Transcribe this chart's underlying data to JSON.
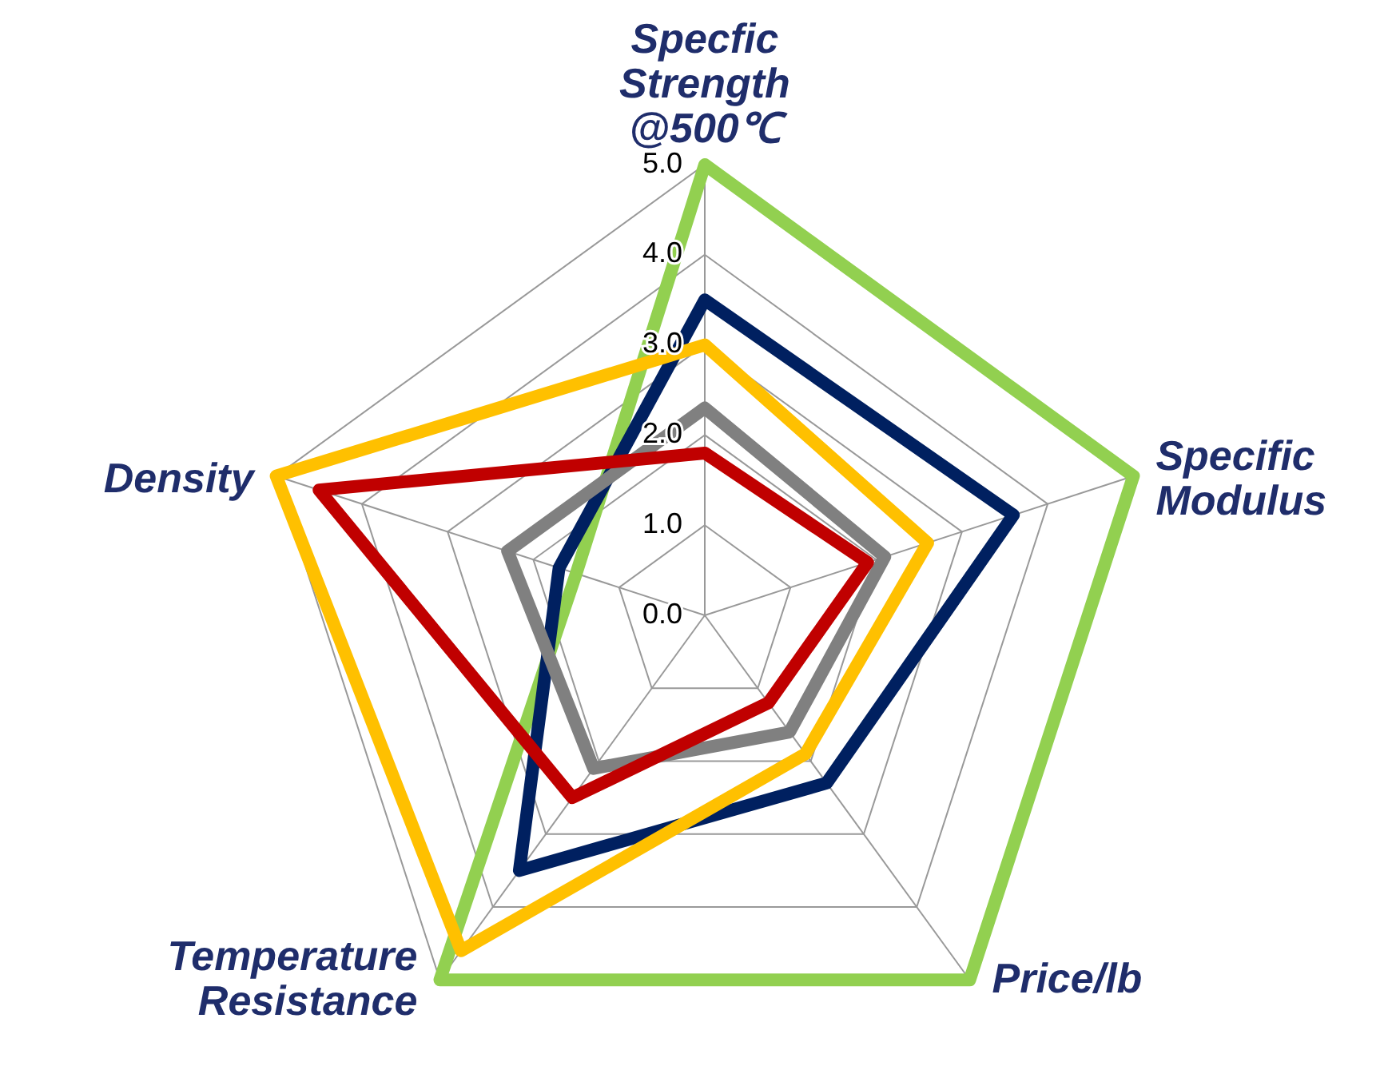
{
  "chart_data": {
    "type": "radar",
    "categories": [
      "Specfic Strength @500℃",
      "Specific Modulus",
      "Price/lb",
      "Temperature Resistance",
      "Density"
    ],
    "ylim": [
      0,
      5
    ],
    "yticks": [
      {
        "value": 0,
        "label": "0.0"
      },
      {
        "value": 1,
        "label": "1.0"
      },
      {
        "value": 2,
        "label": "2.0"
      },
      {
        "value": 3,
        "label": "3.0"
      },
      {
        "value": 4,
        "label": "4.0"
      },
      {
        "value": 5,
        "label": "5.0"
      }
    ],
    "grid": true,
    "marker": "none",
    "series": [
      {
        "color": "#92d050",
        "values": [
          5,
          5,
          5,
          5,
          1.5
        ]
      },
      {
        "color": "#002060",
        "values": [
          3.5,
          3.6,
          2.3,
          3.5,
          1.7
        ]
      },
      {
        "color": "#ffc000",
        "values": [
          3,
          2.6,
          1.9,
          4.6,
          5
        ]
      },
      {
        "color": "#808080",
        "values": [
          2.3,
          2.1,
          1.6,
          2.1,
          2.3
        ]
      },
      {
        "color": "#c00000",
        "values": [
          1.8,
          1.9,
          1.2,
          2.5,
          4.5
        ]
      }
    ]
  }
}
